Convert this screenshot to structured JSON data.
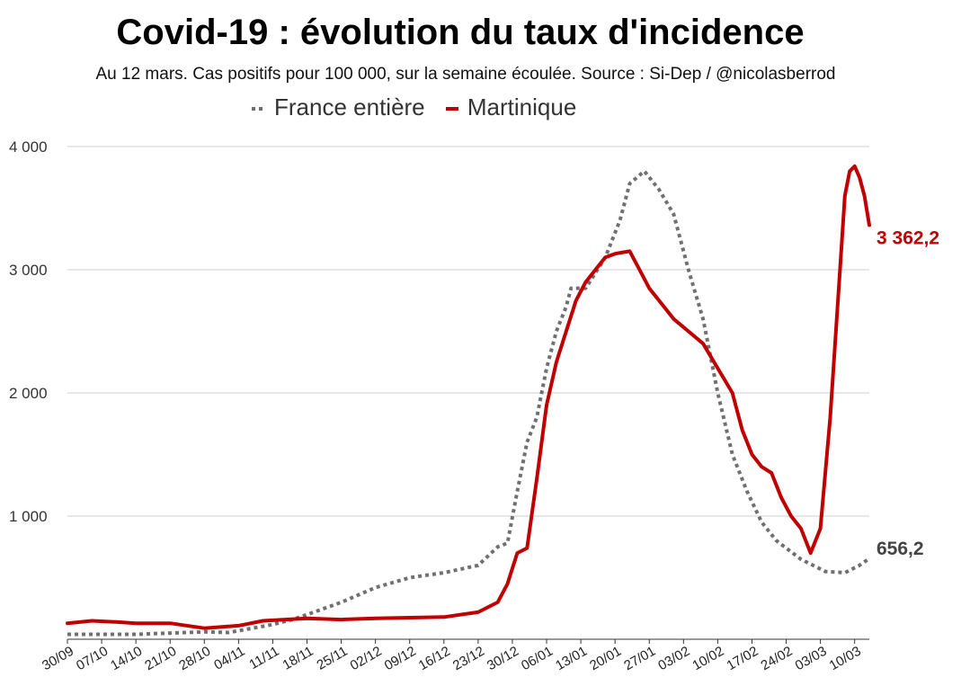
{
  "chart_data": {
    "type": "line",
    "title": "Covid-19 : évolution du taux d'incidence",
    "subtitle": "Au 12 mars. Cas positifs pour 100 000, sur la semaine écoulée. Source : Si-Dep / @nicolasberrod",
    "ylim": [
      0,
      4000
    ],
    "yticks": [
      1000,
      2000,
      3000,
      4000
    ],
    "ytick_labels": [
      "1 000",
      "2 000",
      "3 000",
      "4 000"
    ],
    "x_tick_labels": [
      "30/09",
      "07/10",
      "14/10",
      "21/10",
      "28/10",
      "04/11",
      "11/11",
      "18/11",
      "25/11",
      "02/12",
      "09/12",
      "16/12",
      "23/12",
      "30/12",
      "06/01",
      "13/01",
      "20/01",
      "27/01",
      "03/02",
      "10/02",
      "17/02",
      "24/02",
      "03/03",
      "10/03"
    ],
    "x_range_days": [
      0,
      164
    ],
    "grid": true,
    "legend_position": "top",
    "series": [
      {
        "name": "France entière",
        "color": "#707070",
        "style": "dotted",
        "end_label": "656,2",
        "points": [
          [
            0,
            40
          ],
          [
            14,
            40
          ],
          [
            28,
            60
          ],
          [
            33,
            55
          ],
          [
            42,
            120
          ],
          [
            46,
            160
          ],
          [
            49,
            200
          ],
          [
            56,
            300
          ],
          [
            63,
            420
          ],
          [
            70,
            500
          ],
          [
            77,
            540
          ],
          [
            84,
            600
          ],
          [
            88,
            750
          ],
          [
            90,
            780
          ],
          [
            92,
            1200
          ],
          [
            94,
            1600
          ],
          [
            96,
            1800
          ],
          [
            98,
            2200
          ],
          [
            100,
            2500
          ],
          [
            102,
            2700
          ],
          [
            103,
            2850
          ],
          [
            106,
            2850
          ],
          [
            110,
            3100
          ],
          [
            113,
            3400
          ],
          [
            115,
            3700
          ],
          [
            118,
            3800
          ],
          [
            121,
            3650
          ],
          [
            124,
            3450
          ],
          [
            127,
            3000
          ],
          [
            130,
            2600
          ],
          [
            133,
            2000
          ],
          [
            136,
            1500
          ],
          [
            139,
            1200
          ],
          [
            142,
            950
          ],
          [
            145,
            800
          ],
          [
            150,
            650
          ],
          [
            155,
            550
          ],
          [
            159,
            540
          ],
          [
            162,
            600
          ],
          [
            164,
            656.2
          ]
        ]
      },
      {
        "name": "Martinique",
        "color": "#c00000",
        "style": "solid",
        "end_label": "3 362,2",
        "points": [
          [
            0,
            130
          ],
          [
            5,
            150
          ],
          [
            10,
            140
          ],
          [
            14,
            130
          ],
          [
            21,
            130
          ],
          [
            28,
            90
          ],
          [
            35,
            110
          ],
          [
            40,
            150
          ],
          [
            49,
            170
          ],
          [
            56,
            160
          ],
          [
            63,
            170
          ],
          [
            70,
            175
          ],
          [
            77,
            180
          ],
          [
            84,
            220
          ],
          [
            88,
            300
          ],
          [
            90,
            450
          ],
          [
            92,
            700
          ],
          [
            94,
            740
          ],
          [
            96,
            1300
          ],
          [
            98,
            1900
          ],
          [
            100,
            2250
          ],
          [
            102,
            2500
          ],
          [
            104,
            2750
          ],
          [
            106,
            2900
          ],
          [
            108,
            3000
          ],
          [
            110,
            3100
          ],
          [
            112,
            3130
          ],
          [
            115,
            3150
          ],
          [
            117,
            3000
          ],
          [
            119,
            2850
          ],
          [
            121,
            2750
          ],
          [
            124,
            2600
          ],
          [
            127,
            2500
          ],
          [
            130,
            2400
          ],
          [
            133,
            2200
          ],
          [
            136,
            2000
          ],
          [
            138,
            1700
          ],
          [
            140,
            1500
          ],
          [
            142,
            1400
          ],
          [
            144,
            1350
          ],
          [
            146,
            1150
          ],
          [
            148,
            1000
          ],
          [
            150,
            900
          ],
          [
            152,
            700
          ],
          [
            154,
            900
          ],
          [
            156,
            1800
          ],
          [
            158,
            3000
          ],
          [
            159,
            3600
          ],
          [
            160,
            3800
          ],
          [
            161,
            3840
          ],
          [
            162,
            3750
          ],
          [
            163,
            3600
          ],
          [
            164,
            3362.2
          ]
        ]
      }
    ]
  }
}
